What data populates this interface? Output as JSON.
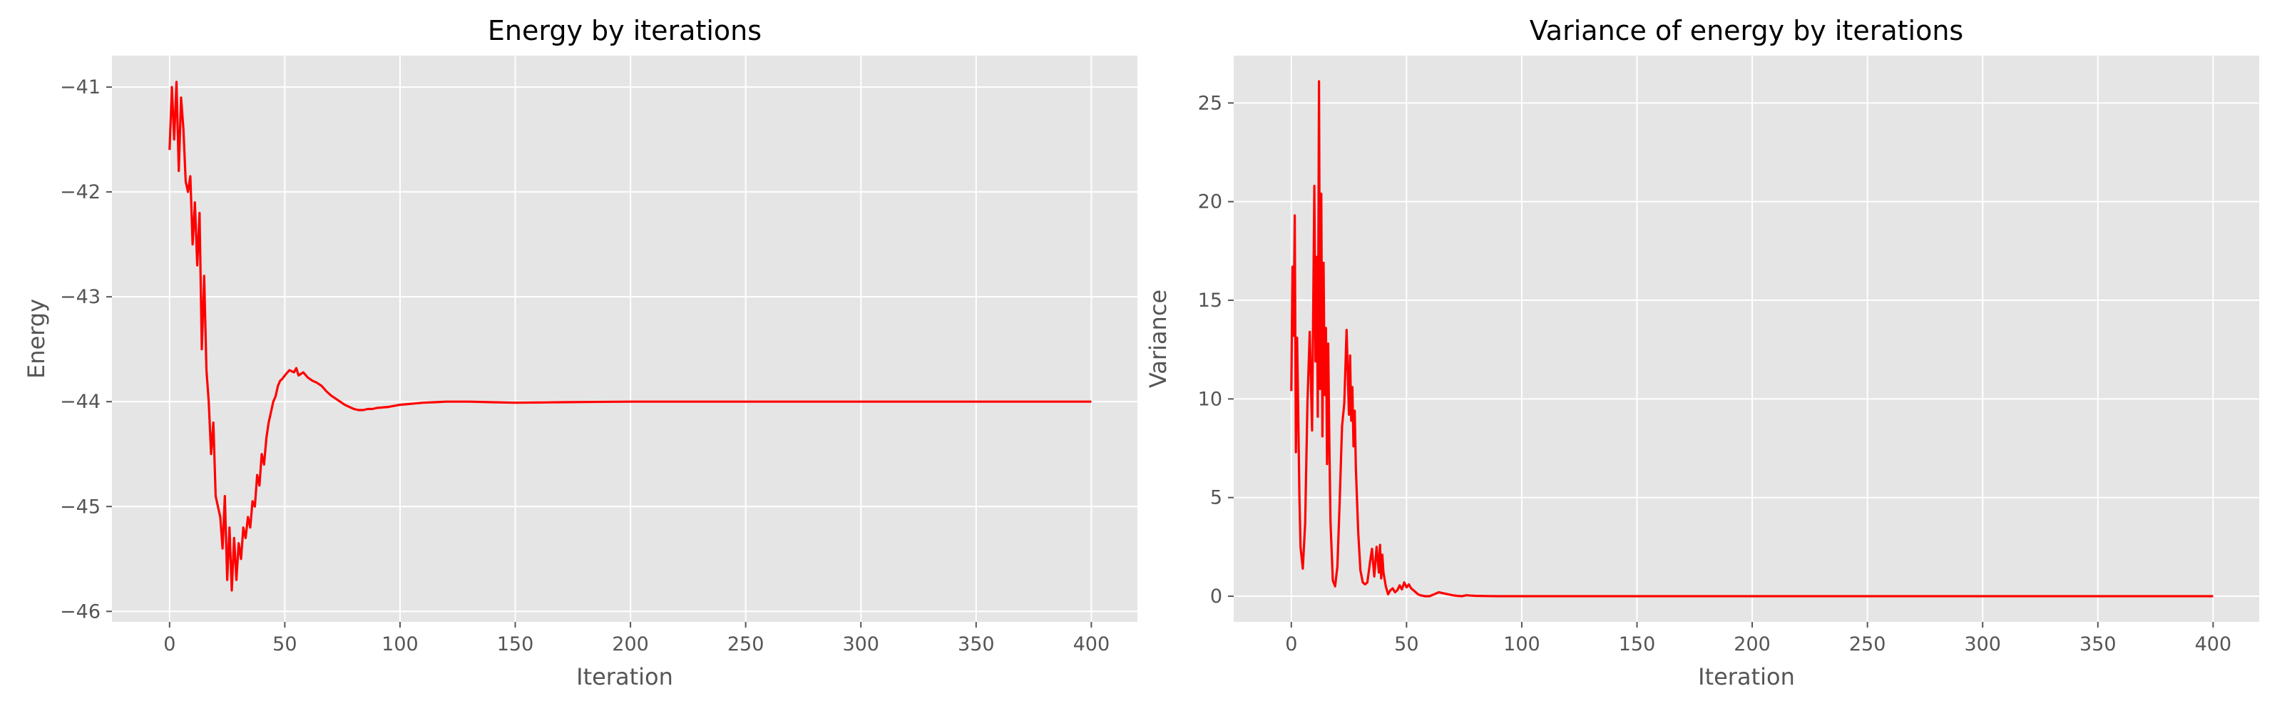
{
  "chart_data": [
    {
      "type": "line",
      "title": "Energy by iterations",
      "xlabel": "Iteration",
      "ylabel": "Energy",
      "xlim": [
        -25,
        420
      ],
      "ylim": [
        -46.1,
        -40.7
      ],
      "xticks": [
        0,
        50,
        100,
        150,
        200,
        250,
        300,
        350,
        400
      ],
      "yticks": [
        -41,
        -42,
        -43,
        -44,
        -45,
        -46
      ],
      "xtick_labels": [
        "0",
        "50",
        "100",
        "150",
        "200",
        "250",
        "300",
        "350",
        "400"
      ],
      "ytick_labels": [
        "−41",
        "−42",
        "−43",
        "−44",
        "−45",
        "−46"
      ],
      "grid": true,
      "series": [
        {
          "color": "#ff0000",
          "x": [
            0,
            1,
            2,
            3,
            4,
            5,
            6,
            7,
            8,
            9,
            10,
            11,
            12,
            13,
            14,
            15,
            16,
            17,
            18,
            19,
            20,
            21,
            22,
            23,
            24,
            25,
            26,
            27,
            28,
            29,
            30,
            31,
            32,
            33,
            34,
            35,
            36,
            37,
            38,
            39,
            40,
            41,
            42,
            43,
            44,
            45,
            46,
            47,
            48,
            49,
            50,
            52,
            54,
            55,
            56,
            58,
            60,
            62,
            64,
            66,
            68,
            70,
            72,
            74,
            76,
            78,
            80,
            82,
            84,
            86,
            88,
            90,
            95,
            100,
            105,
            110,
            115,
            120,
            130,
            140,
            150,
            160,
            170,
            180,
            200,
            225,
            250,
            275,
            300,
            325,
            350,
            375,
            400
          ],
          "y": [
            -41.6,
            -41.0,
            -41.5,
            -40.95,
            -41.8,
            -41.1,
            -41.4,
            -41.9,
            -42.0,
            -41.85,
            -42.5,
            -42.1,
            -42.7,
            -42.2,
            -43.5,
            -42.8,
            -43.7,
            -44.0,
            -44.5,
            -44.2,
            -44.9,
            -45.0,
            -45.1,
            -45.4,
            -44.9,
            -45.7,
            -45.2,
            -45.8,
            -45.3,
            -45.7,
            -45.35,
            -45.5,
            -45.2,
            -45.3,
            -45.1,
            -45.2,
            -44.95,
            -45.0,
            -44.7,
            -44.8,
            -44.5,
            -44.6,
            -44.35,
            -44.2,
            -44.1,
            -44.0,
            -43.95,
            -43.85,
            -43.8,
            -43.78,
            -43.75,
            -43.7,
            -43.72,
            -43.68,
            -43.75,
            -43.72,
            -43.77,
            -43.8,
            -43.82,
            -43.85,
            -43.9,
            -43.94,
            -43.97,
            -44.0,
            -44.03,
            -44.05,
            -44.07,
            -44.08,
            -44.08,
            -44.07,
            -44.07,
            -44.06,
            -44.05,
            -44.03,
            -44.02,
            -44.01,
            -44.005,
            -44.0,
            -44.0,
            -44.005,
            -44.01,
            -44.008,
            -44.005,
            -44.003,
            -44.0,
            -44.0,
            -44.0,
            -44.0,
            -44.0,
            -44.0,
            -44.0,
            -44.0,
            -44.0
          ]
        }
      ]
    },
    {
      "type": "line",
      "title": "Variance of energy by iterations",
      "xlabel": "Iteration",
      "ylabel": "Variance",
      "xlim": [
        -25,
        420
      ],
      "ylim": [
        -1.3,
        27.4
      ],
      "xticks": [
        0,
        50,
        100,
        150,
        200,
        250,
        300,
        350,
        400
      ],
      "yticks": [
        0,
        5,
        10,
        15,
        20,
        25
      ],
      "xtick_labels": [
        "0",
        "50",
        "100",
        "150",
        "200",
        "250",
        "300",
        "350",
        "400"
      ],
      "ytick_labels": [
        "0",
        "5",
        "10",
        "15",
        "20",
        "25"
      ],
      "grid": true,
      "series": [
        {
          "color": "#ff0000",
          "x": [
            0,
            0.5,
            1,
            1.5,
            2,
            2.5,
            3,
            3.5,
            4,
            5,
            6,
            7,
            8,
            9,
            10,
            10.5,
            11,
            11.5,
            12,
            12.5,
            13,
            13.5,
            14,
            14.5,
            15,
            15.5,
            16,
            16.5,
            17,
            18,
            19,
            20,
            21,
            22,
            23,
            24,
            25,
            25.5,
            26,
            26.5,
            27,
            27.5,
            28,
            29,
            30,
            31,
            32,
            33,
            34,
            35,
            36,
            37,
            38,
            38.5,
            39,
            39.5,
            40,
            41,
            42,
            43,
            44,
            45,
            46,
            47,
            48,
            49,
            50,
            51,
            52,
            53,
            54,
            55,
            56,
            58,
            60,
            62,
            64,
            66,
            68,
            70,
            72,
            74,
            76,
            78,
            80,
            85,
            90,
            100,
            120,
            150,
            200,
            250,
            300,
            350,
            400
          ],
          "y": [
            10.4,
            16.7,
            13.2,
            19.3,
            7.3,
            13.1,
            9.2,
            5.1,
            2.5,
            1.4,
            3.7,
            9.8,
            13.4,
            8.4,
            20.8,
            11.9,
            17.2,
            9.1,
            26.1,
            10.5,
            20.4,
            8.1,
            16.9,
            10.2,
            13.6,
            6.7,
            12.8,
            7.8,
            3.8,
            0.8,
            0.5,
            1.5,
            4.8,
            8.6,
            9.8,
            13.5,
            9.2,
            12.2,
            8.9,
            10.6,
            7.6,
            9.4,
            6.5,
            3.3,
            1.3,
            0.7,
            0.6,
            0.7,
            1.6,
            2.4,
            1.0,
            2.5,
            1.2,
            2.6,
            0.9,
            2.1,
            1.2,
            0.5,
            0.1,
            0.3,
            0.4,
            0.2,
            0.3,
            0.55,
            0.35,
            0.7,
            0.45,
            0.6,
            0.4,
            0.3,
            0.2,
            0.1,
            0.05,
            0.0,
            0.0,
            0.1,
            0.2,
            0.15,
            0.1,
            0.05,
            0.02,
            0.0,
            0.05,
            0.03,
            0.02,
            0.01,
            0.0,
            0.0,
            0.0,
            0.0,
            0.0,
            0.0,
            0.0,
            0.0,
            0.0
          ]
        }
      ]
    }
  ]
}
